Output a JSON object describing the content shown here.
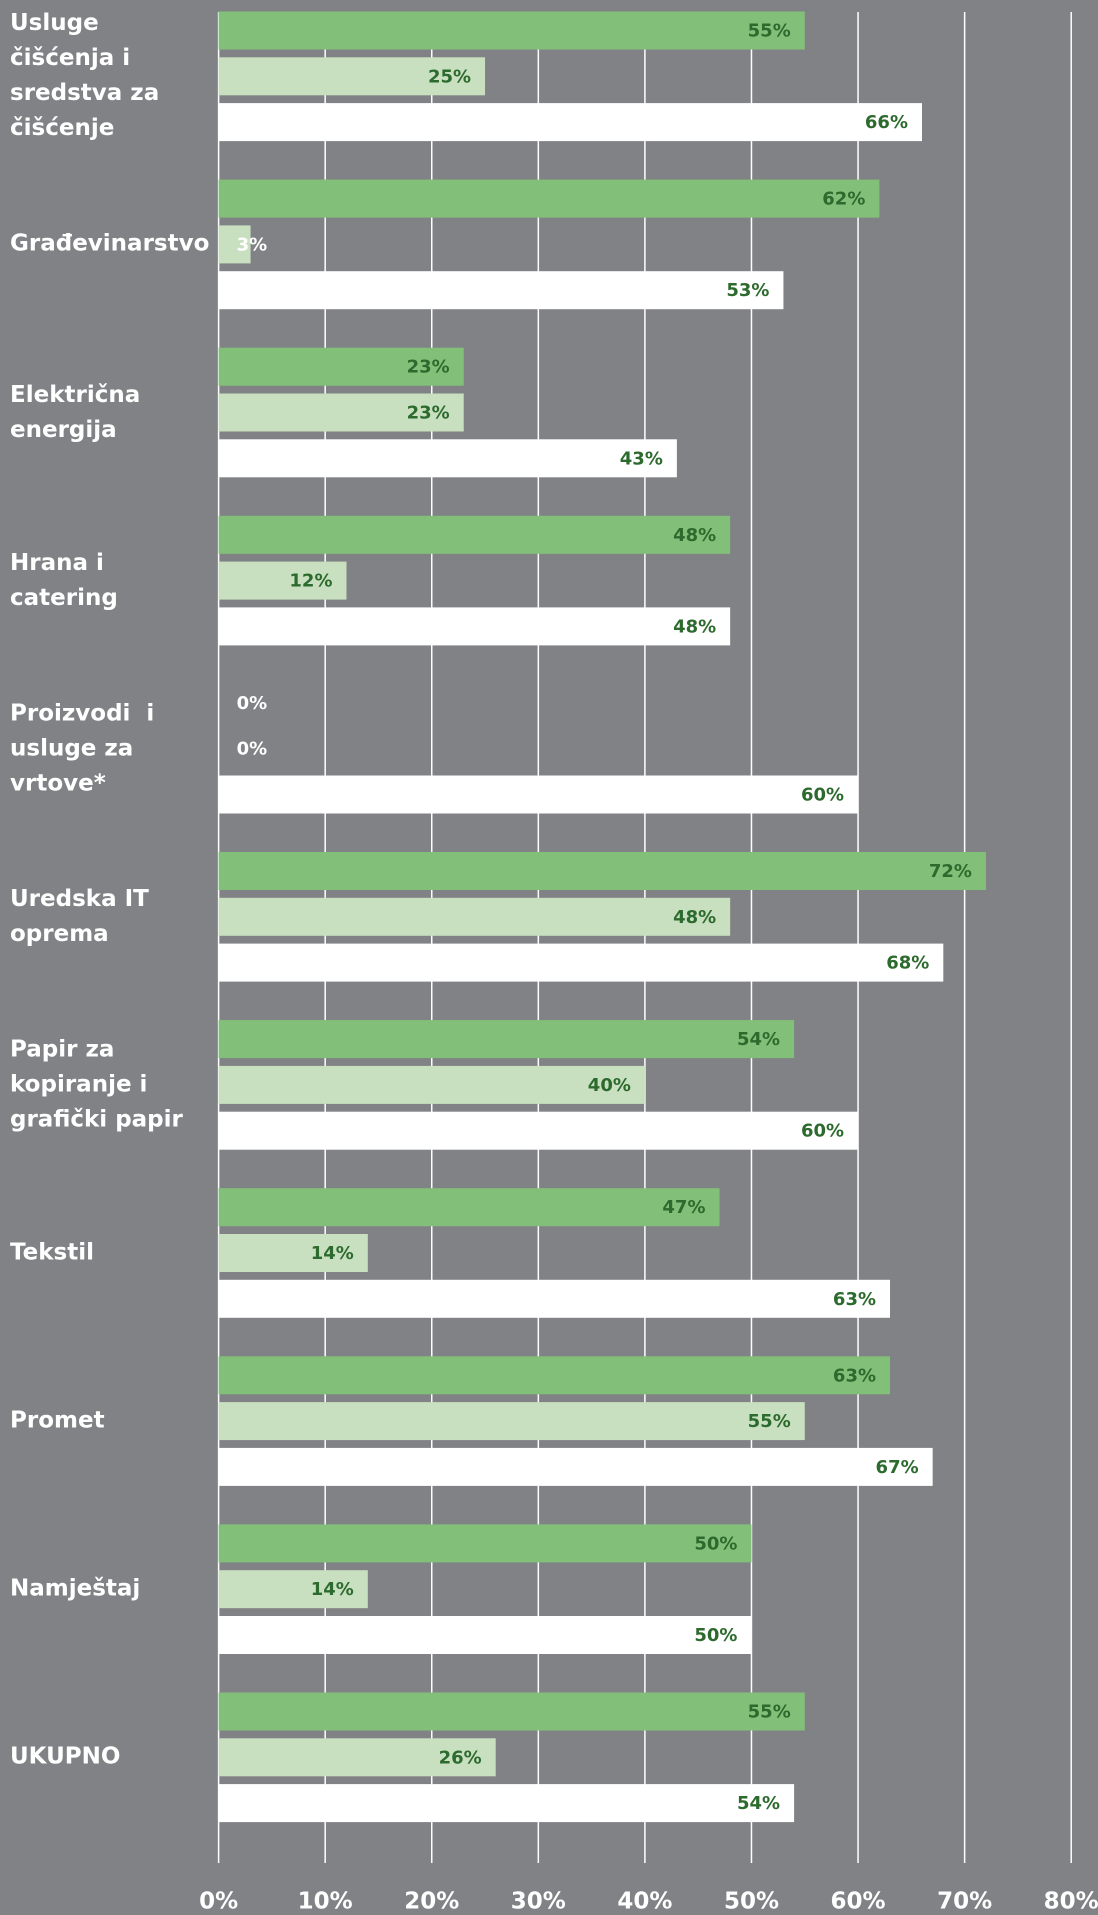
{
  "chart_data": {
    "type": "bar",
    "orientation": "horizontal",
    "categories": [
      "Usluge čišćenja i sredstva za čišćenje",
      "Građevinarstvo",
      "Električna energija",
      "Hrana i catering",
      "Proizvodi  i usluge za vrtove*",
      "Uredska IT oprema",
      "Papir za kopiranje i grafički papir",
      "Tekstil",
      "Promet",
      "Namještaj",
      "UKUPNO"
    ],
    "series": [
      {
        "color": "#82c07a",
        "values": [
          55,
          62,
          23,
          48,
          0,
          72,
          54,
          47,
          63,
          50,
          55
        ],
        "value_labels": [
          "55%",
          "62%",
          "23%",
          "48%",
          "0%",
          "72%",
          "54%",
          "47%",
          "63%",
          "50%",
          "55%"
        ]
      },
      {
        "color": "#c8e0c0",
        "values": [
          25,
          3,
          23,
          12,
          0,
          48,
          40,
          14,
          55,
          14,
          26
        ],
        "value_labels": [
          "25%",
          "3%",
          "23%",
          "12%",
          "0%",
          "48%",
          "40%",
          "14%",
          "55%",
          "14%",
          "26%"
        ]
      },
      {
        "color": "#ffffff",
        "values": [
          66,
          53,
          43,
          48,
          60,
          68,
          60,
          63,
          67,
          50,
          54
        ],
        "value_labels": [
          "66%",
          "53%",
          "43%",
          "48%",
          "60%",
          "68%",
          "60%",
          "63%",
          "67%",
          "50%",
          "54%"
        ]
      }
    ],
    "xlim": [
      0,
      80
    ],
    "xticks": [
      {
        "value": 0,
        "label": "0%"
      },
      {
        "value": 10,
        "label": "10%"
      },
      {
        "value": 20,
        "label": "20%"
      },
      {
        "value": 30,
        "label": "30%"
      },
      {
        "value": 40,
        "label": "40%"
      },
      {
        "value": 50,
        "label": "50%"
      },
      {
        "value": 60,
        "label": "60%"
      },
      {
        "value": 70,
        "label": "70%"
      },
      {
        "value": 80,
        "label": "80%"
      }
    ],
    "grid": true
  }
}
